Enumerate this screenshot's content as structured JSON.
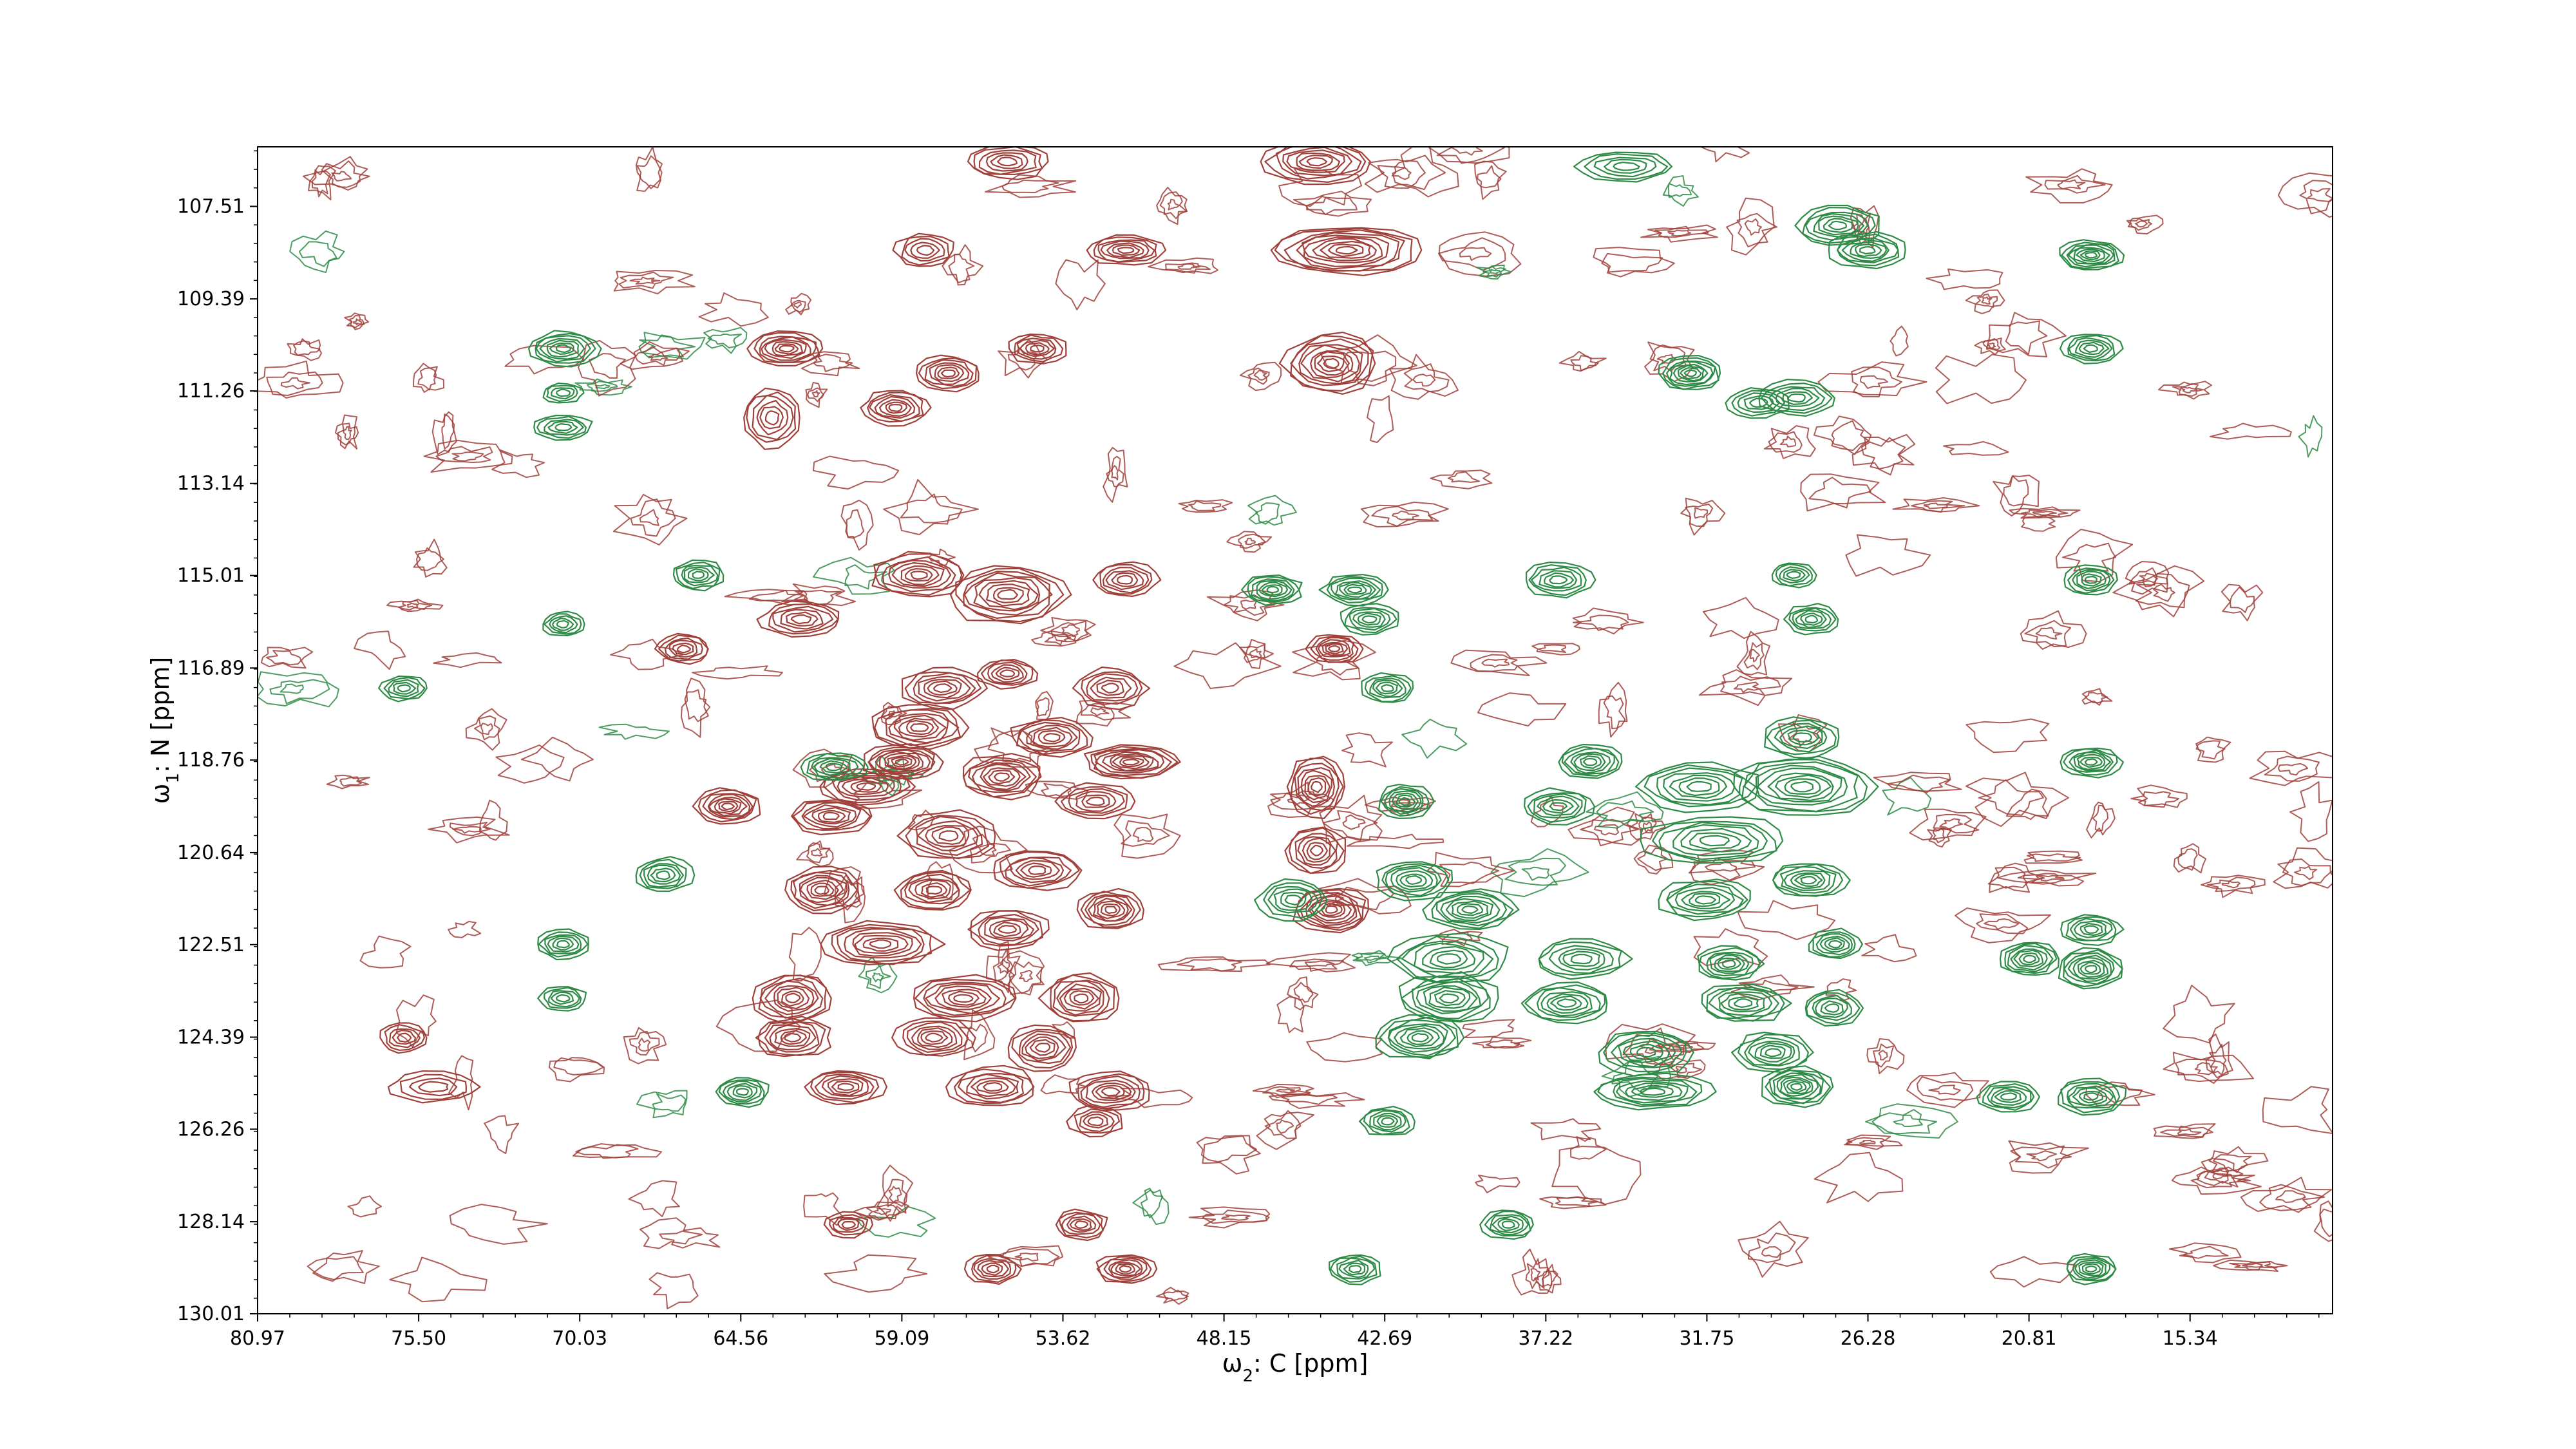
{
  "chart_data": {
    "type": "contour",
    "title": "",
    "colors": {
      "positive": "#a0403a",
      "negative": "#2e8b46"
    },
    "x_axis": {
      "label_prefix": "ω",
      "label_sub": "2",
      "label_rest": ": C [ppm]",
      "range": [
        80.97,
        10.5
      ],
      "reversed": true,
      "ticks": [
        80.97,
        75.5,
        70.03,
        64.56,
        59.09,
        53.62,
        48.15,
        42.69,
        37.22,
        31.75,
        26.28,
        20.81,
        15.34
      ],
      "tick_labels": [
        "80.97",
        "75.50",
        "70.03",
        "64.56",
        "59.09",
        "53.62",
        "48.15",
        "42.69",
        "37.22",
        "31.75",
        "26.28",
        "20.81",
        "15.34"
      ]
    },
    "y_axis": {
      "label_prefix": "ω",
      "label_sub": "1",
      "label_rest": ": N [ppm]",
      "range": [
        106.3,
        130.01
      ],
      "reversed": true,
      "ticks": [
        107.51,
        109.39,
        111.26,
        113.14,
        115.01,
        116.89,
        118.76,
        120.64,
        122.51,
        124.39,
        126.26,
        128.14,
        130.01
      ],
      "tick_labels": [
        "107.51",
        "109.39",
        "111.26",
        "113.14",
        "115.01",
        "116.89",
        "118.76",
        "120.64",
        "122.51",
        "124.39",
        "126.26",
        "128.14",
        "130.01"
      ]
    },
    "peaks": [
      {
        "x": 55.5,
        "y": 106.6,
        "rx": 1.4,
        "ry": 0.35,
        "levels": 6,
        "sign": "positive"
      },
      {
        "x": 45.0,
        "y": 106.6,
        "rx": 1.8,
        "ry": 0.45,
        "levels": 8,
        "sign": "positive"
      },
      {
        "x": 34.5,
        "y": 106.7,
        "rx": 1.6,
        "ry": 0.3,
        "levels": 5,
        "sign": "negative"
      },
      {
        "x": 58.3,
        "y": 108.4,
        "rx": 1.0,
        "ry": 0.35,
        "levels": 5,
        "sign": "positive"
      },
      {
        "x": 51.5,
        "y": 108.4,
        "rx": 1.3,
        "ry": 0.3,
        "levels": 7,
        "sign": "positive"
      },
      {
        "x": 44.0,
        "y": 108.4,
        "rx": 2.5,
        "ry": 0.5,
        "levels": 10,
        "sign": "positive"
      },
      {
        "x": 27.3,
        "y": 107.9,
        "rx": 1.4,
        "ry": 0.4,
        "levels": 7,
        "sign": "negative"
      },
      {
        "x": 26.3,
        "y": 108.4,
        "rx": 1.3,
        "ry": 0.35,
        "levels": 7,
        "sign": "negative"
      },
      {
        "x": 18.7,
        "y": 108.5,
        "rx": 1.1,
        "ry": 0.3,
        "levels": 8,
        "sign": "negative"
      },
      {
        "x": 70.6,
        "y": 110.4,
        "rx": 1.2,
        "ry": 0.35,
        "levels": 7,
        "sign": "negative"
      },
      {
        "x": 63.0,
        "y": 110.4,
        "rx": 1.3,
        "ry": 0.35,
        "levels": 8,
        "sign": "positive"
      },
      {
        "x": 57.5,
        "y": 110.9,
        "rx": 1.1,
        "ry": 0.35,
        "levels": 7,
        "sign": "positive"
      },
      {
        "x": 54.5,
        "y": 110.4,
        "rx": 1.0,
        "ry": 0.3,
        "levels": 6,
        "sign": "positive"
      },
      {
        "x": 44.5,
        "y": 110.7,
        "rx": 1.6,
        "ry": 0.6,
        "levels": 9,
        "sign": "positive"
      },
      {
        "x": 32.3,
        "y": 110.9,
        "rx": 1.1,
        "ry": 0.35,
        "levels": 8,
        "sign": "negative"
      },
      {
        "x": 18.7,
        "y": 110.4,
        "rx": 1.0,
        "ry": 0.3,
        "levels": 6,
        "sign": "negative"
      },
      {
        "x": 59.3,
        "y": 111.6,
        "rx": 1.1,
        "ry": 0.35,
        "levels": 7,
        "sign": "positive"
      },
      {
        "x": 63.5,
        "y": 111.8,
        "rx": 1.0,
        "ry": 0.6,
        "levels": 6,
        "sign": "positive"
      },
      {
        "x": 28.7,
        "y": 111.4,
        "rx": 1.3,
        "ry": 0.35,
        "levels": 6,
        "sign": "negative"
      },
      {
        "x": 30.0,
        "y": 111.5,
        "rx": 1.1,
        "ry": 0.3,
        "levels": 5,
        "sign": "negative"
      },
      {
        "x": 70.6,
        "y": 112.0,
        "rx": 1.0,
        "ry": 0.25,
        "levels": 5,
        "sign": "negative"
      },
      {
        "x": 70.6,
        "y": 111.3,
        "rx": 0.7,
        "ry": 0.2,
        "levels": 4,
        "sign": "negative"
      },
      {
        "x": 66.0,
        "y": 115.0,
        "rx": 0.9,
        "ry": 0.3,
        "levels": 6,
        "sign": "negative"
      },
      {
        "x": 58.5,
        "y": 115.0,
        "rx": 1.6,
        "ry": 0.45,
        "levels": 8,
        "sign": "positive"
      },
      {
        "x": 55.5,
        "y": 115.4,
        "rx": 2.0,
        "ry": 0.6,
        "levels": 9,
        "sign": "positive"
      },
      {
        "x": 51.5,
        "y": 115.1,
        "rx": 1.1,
        "ry": 0.35,
        "levels": 6,
        "sign": "positive"
      },
      {
        "x": 70.6,
        "y": 116.0,
        "rx": 0.7,
        "ry": 0.25,
        "levels": 5,
        "sign": "negative"
      },
      {
        "x": 62.5,
        "y": 115.9,
        "rx": 1.4,
        "ry": 0.35,
        "levels": 6,
        "sign": "positive"
      },
      {
        "x": 66.5,
        "y": 116.5,
        "rx": 0.9,
        "ry": 0.3,
        "levels": 6,
        "sign": "positive"
      },
      {
        "x": 46.5,
        "y": 115.3,
        "rx": 1.0,
        "ry": 0.3,
        "levels": 7,
        "sign": "negative"
      },
      {
        "x": 43.7,
        "y": 115.3,
        "rx": 1.1,
        "ry": 0.3,
        "levels": 7,
        "sign": "negative"
      },
      {
        "x": 43.2,
        "y": 115.9,
        "rx": 1.0,
        "ry": 0.3,
        "levels": 6,
        "sign": "negative"
      },
      {
        "x": 44.4,
        "y": 116.5,
        "rx": 0.9,
        "ry": 0.3,
        "levels": 7,
        "sign": "positive"
      },
      {
        "x": 42.6,
        "y": 117.3,
        "rx": 0.9,
        "ry": 0.3,
        "levels": 6,
        "sign": "negative"
      },
      {
        "x": 36.8,
        "y": 115.1,
        "rx": 1.2,
        "ry": 0.35,
        "levels": 6,
        "sign": "negative"
      },
      {
        "x": 28.2,
        "y": 115.9,
        "rx": 0.9,
        "ry": 0.3,
        "levels": 6,
        "sign": "negative"
      },
      {
        "x": 28.8,
        "y": 115.0,
        "rx": 0.8,
        "ry": 0.25,
        "levels": 5,
        "sign": "negative"
      },
      {
        "x": 18.7,
        "y": 115.1,
        "rx": 0.9,
        "ry": 0.3,
        "levels": 6,
        "sign": "negative"
      },
      {
        "x": 76.0,
        "y": 117.3,
        "rx": 0.8,
        "ry": 0.25,
        "levels": 5,
        "sign": "negative"
      },
      {
        "x": 57.7,
        "y": 117.3,
        "rx": 1.4,
        "ry": 0.4,
        "levels": 7,
        "sign": "positive"
      },
      {
        "x": 55.5,
        "y": 117.0,
        "rx": 1.0,
        "ry": 0.3,
        "levels": 6,
        "sign": "positive"
      },
      {
        "x": 52.0,
        "y": 117.3,
        "rx": 1.2,
        "ry": 0.4,
        "levels": 6,
        "sign": "positive"
      },
      {
        "x": 58.5,
        "y": 118.1,
        "rx": 1.6,
        "ry": 0.45,
        "levels": 8,
        "sign": "positive"
      },
      {
        "x": 54.0,
        "y": 118.3,
        "rx": 1.4,
        "ry": 0.4,
        "levels": 7,
        "sign": "positive"
      },
      {
        "x": 59.1,
        "y": 118.8,
        "rx": 1.3,
        "ry": 0.35,
        "levels": 9,
        "sign": "positive"
      },
      {
        "x": 51.3,
        "y": 118.8,
        "rx": 1.6,
        "ry": 0.35,
        "levels": 9,
        "sign": "positive"
      },
      {
        "x": 55.7,
        "y": 119.1,
        "rx": 1.4,
        "ry": 0.45,
        "levels": 8,
        "sign": "positive"
      },
      {
        "x": 60.3,
        "y": 119.3,
        "rx": 1.6,
        "ry": 0.35,
        "levels": 7,
        "sign": "positive"
      },
      {
        "x": 65.0,
        "y": 119.7,
        "rx": 1.1,
        "ry": 0.35,
        "levels": 8,
        "sign": "positive"
      },
      {
        "x": 61.5,
        "y": 119.9,
        "rx": 1.4,
        "ry": 0.35,
        "levels": 7,
        "sign": "positive"
      },
      {
        "x": 52.5,
        "y": 119.6,
        "rx": 1.3,
        "ry": 0.35,
        "levels": 6,
        "sign": "positive"
      },
      {
        "x": 57.5,
        "y": 120.3,
        "rx": 1.6,
        "ry": 0.5,
        "levels": 7,
        "sign": "positive"
      },
      {
        "x": 45.0,
        "y": 119.3,
        "rx": 1.0,
        "ry": 0.6,
        "levels": 8,
        "sign": "positive"
      },
      {
        "x": 45.0,
        "y": 120.6,
        "rx": 1.0,
        "ry": 0.5,
        "levels": 7,
        "sign": "positive"
      },
      {
        "x": 61.4,
        "y": 118.9,
        "rx": 1.1,
        "ry": 0.3,
        "levels": 6,
        "sign": "negative"
      },
      {
        "x": 42.0,
        "y": 119.6,
        "rx": 0.9,
        "ry": 0.35,
        "levels": 7,
        "sign": "negative"
      },
      {
        "x": 35.7,
        "y": 118.8,
        "rx": 1.1,
        "ry": 0.35,
        "levels": 7,
        "sign": "negative"
      },
      {
        "x": 36.8,
        "y": 119.7,
        "rx": 1.2,
        "ry": 0.35,
        "levels": 6,
        "sign": "negative"
      },
      {
        "x": 32.0,
        "y": 119.3,
        "rx": 2.0,
        "ry": 0.5,
        "levels": 7,
        "sign": "negative"
      },
      {
        "x": 28.5,
        "y": 119.3,
        "rx": 2.4,
        "ry": 0.6,
        "levels": 9,
        "sign": "negative"
      },
      {
        "x": 28.5,
        "y": 118.3,
        "rx": 1.3,
        "ry": 0.4,
        "levels": 6,
        "sign": "negative"
      },
      {
        "x": 31.5,
        "y": 120.4,
        "rx": 2.5,
        "ry": 0.5,
        "levels": 7,
        "sign": "negative"
      },
      {
        "x": 18.7,
        "y": 118.8,
        "rx": 1.0,
        "ry": 0.3,
        "levels": 7,
        "sign": "negative"
      },
      {
        "x": 67.2,
        "y": 121.1,
        "rx": 1.0,
        "ry": 0.35,
        "levels": 6,
        "sign": "negative"
      },
      {
        "x": 61.8,
        "y": 121.4,
        "rx": 1.3,
        "ry": 0.45,
        "levels": 8,
        "sign": "positive"
      },
      {
        "x": 58.0,
        "y": 121.4,
        "rx": 1.3,
        "ry": 0.4,
        "levels": 7,
        "sign": "positive"
      },
      {
        "x": 54.5,
        "y": 121.0,
        "rx": 1.5,
        "ry": 0.4,
        "levels": 7,
        "sign": "positive"
      },
      {
        "x": 52.0,
        "y": 121.8,
        "rx": 1.1,
        "ry": 0.4,
        "levels": 8,
        "sign": "positive"
      },
      {
        "x": 44.5,
        "y": 121.8,
        "rx": 1.3,
        "ry": 0.45,
        "levels": 9,
        "sign": "positive"
      },
      {
        "x": 41.7,
        "y": 121.2,
        "rx": 1.3,
        "ry": 0.4,
        "levels": 7,
        "sign": "negative"
      },
      {
        "x": 39.8,
        "y": 121.8,
        "rx": 1.5,
        "ry": 0.4,
        "levels": 8,
        "sign": "negative"
      },
      {
        "x": 45.8,
        "y": 121.6,
        "rx": 1.2,
        "ry": 0.4,
        "levels": 6,
        "sign": "negative"
      },
      {
        "x": 31.8,
        "y": 121.6,
        "rx": 1.6,
        "ry": 0.4,
        "levels": 7,
        "sign": "negative"
      },
      {
        "x": 28.3,
        "y": 121.2,
        "rx": 1.3,
        "ry": 0.35,
        "levels": 7,
        "sign": "negative"
      },
      {
        "x": 70.6,
        "y": 122.5,
        "rx": 0.9,
        "ry": 0.3,
        "levels": 6,
        "sign": "negative"
      },
      {
        "x": 59.8,
        "y": 122.5,
        "rx": 2.0,
        "ry": 0.45,
        "levels": 8,
        "sign": "positive"
      },
      {
        "x": 55.5,
        "y": 122.2,
        "rx": 1.4,
        "ry": 0.4,
        "levels": 7,
        "sign": "positive"
      },
      {
        "x": 40.5,
        "y": 122.8,
        "rx": 2.0,
        "ry": 0.5,
        "levels": 7,
        "sign": "negative"
      },
      {
        "x": 36.0,
        "y": 122.8,
        "rx": 1.6,
        "ry": 0.4,
        "levels": 6,
        "sign": "negative"
      },
      {
        "x": 31.0,
        "y": 122.9,
        "rx": 1.1,
        "ry": 0.35,
        "levels": 7,
        "sign": "negative"
      },
      {
        "x": 27.4,
        "y": 122.5,
        "rx": 0.9,
        "ry": 0.3,
        "levels": 6,
        "sign": "negative"
      },
      {
        "x": 18.7,
        "y": 122.2,
        "rx": 1.0,
        "ry": 0.3,
        "levels": 6,
        "sign": "negative"
      },
      {
        "x": 20.8,
        "y": 122.8,
        "rx": 1.0,
        "ry": 0.35,
        "levels": 7,
        "sign": "negative"
      },
      {
        "x": 18.7,
        "y": 123.0,
        "rx": 1.1,
        "ry": 0.4,
        "levels": 8,
        "sign": "negative"
      },
      {
        "x": 70.6,
        "y": 123.6,
        "rx": 0.8,
        "ry": 0.25,
        "levels": 5,
        "sign": "negative"
      },
      {
        "x": 62.8,
        "y": 123.6,
        "rx": 1.3,
        "ry": 0.5,
        "levels": 8,
        "sign": "positive"
      },
      {
        "x": 57.0,
        "y": 123.6,
        "rx": 1.8,
        "ry": 0.45,
        "levels": 8,
        "sign": "positive"
      },
      {
        "x": 53.0,
        "y": 123.6,
        "rx": 1.3,
        "ry": 0.5,
        "levels": 8,
        "sign": "positive"
      },
      {
        "x": 40.5,
        "y": 123.6,
        "rx": 1.7,
        "ry": 0.5,
        "levels": 8,
        "sign": "negative"
      },
      {
        "x": 36.5,
        "y": 123.7,
        "rx": 1.5,
        "ry": 0.4,
        "levels": 7,
        "sign": "negative"
      },
      {
        "x": 30.5,
        "y": 123.7,
        "rx": 1.5,
        "ry": 0.4,
        "levels": 7,
        "sign": "negative"
      },
      {
        "x": 27.5,
        "y": 123.8,
        "rx": 1.0,
        "ry": 0.35,
        "levels": 6,
        "sign": "negative"
      },
      {
        "x": 62.8,
        "y": 124.4,
        "rx": 1.3,
        "ry": 0.4,
        "levels": 7,
        "sign": "positive"
      },
      {
        "x": 58.0,
        "y": 124.4,
        "rx": 1.3,
        "ry": 0.4,
        "levels": 7,
        "sign": "positive"
      },
      {
        "x": 54.3,
        "y": 124.6,
        "rx": 1.2,
        "ry": 0.45,
        "levels": 7,
        "sign": "positive"
      },
      {
        "x": 41.5,
        "y": 124.4,
        "rx": 1.5,
        "ry": 0.45,
        "levels": 8,
        "sign": "negative"
      },
      {
        "x": 33.8,
        "y": 124.7,
        "rx": 1.6,
        "ry": 0.45,
        "levels": 7,
        "sign": "negative"
      },
      {
        "x": 29.5,
        "y": 124.7,
        "rx": 1.3,
        "ry": 0.4,
        "levels": 7,
        "sign": "negative"
      },
      {
        "x": 76.0,
        "y": 124.4,
        "rx": 0.8,
        "ry": 0.3,
        "levels": 5,
        "sign": "positive"
      },
      {
        "x": 61.0,
        "y": 125.4,
        "rx": 1.3,
        "ry": 0.35,
        "levels": 7,
        "sign": "positive"
      },
      {
        "x": 56.0,
        "y": 125.4,
        "rx": 1.5,
        "ry": 0.4,
        "levels": 7,
        "sign": "positive"
      },
      {
        "x": 52.0,
        "y": 125.5,
        "rx": 1.4,
        "ry": 0.4,
        "levels": 7,
        "sign": "positive"
      },
      {
        "x": 64.5,
        "y": 125.5,
        "rx": 0.9,
        "ry": 0.3,
        "levels": 6,
        "sign": "negative"
      },
      {
        "x": 33.6,
        "y": 125.5,
        "rx": 2.0,
        "ry": 0.35,
        "levels": 7,
        "sign": "negative"
      },
      {
        "x": 28.7,
        "y": 125.4,
        "rx": 1.2,
        "ry": 0.4,
        "levels": 9,
        "sign": "negative"
      },
      {
        "x": 21.5,
        "y": 125.6,
        "rx": 1.1,
        "ry": 0.3,
        "levels": 6,
        "sign": "negative"
      },
      {
        "x": 18.7,
        "y": 125.6,
        "rx": 1.2,
        "ry": 0.35,
        "levels": 7,
        "sign": "negative"
      },
      {
        "x": 75.0,
        "y": 125.4,
        "rx": 1.5,
        "ry": 0.3,
        "levels": 4,
        "sign": "positive"
      },
      {
        "x": 52.5,
        "y": 126.1,
        "rx": 0.9,
        "ry": 0.3,
        "levels": 5,
        "sign": "positive"
      },
      {
        "x": 42.6,
        "y": 126.1,
        "rx": 0.9,
        "ry": 0.3,
        "levels": 6,
        "sign": "negative"
      },
      {
        "x": 38.5,
        "y": 128.2,
        "rx": 0.9,
        "ry": 0.3,
        "levels": 6,
        "sign": "negative"
      },
      {
        "x": 53.0,
        "y": 128.2,
        "rx": 0.9,
        "ry": 0.3,
        "levels": 6,
        "sign": "positive"
      },
      {
        "x": 56.0,
        "y": 129.1,
        "rx": 0.9,
        "ry": 0.3,
        "levels": 6,
        "sign": "positive"
      },
      {
        "x": 51.5,
        "y": 129.1,
        "rx": 1.0,
        "ry": 0.3,
        "levels": 7,
        "sign": "positive"
      },
      {
        "x": 43.7,
        "y": 129.1,
        "rx": 0.9,
        "ry": 0.3,
        "levels": 6,
        "sign": "negative"
      },
      {
        "x": 18.7,
        "y": 129.1,
        "rx": 0.9,
        "ry": 0.3,
        "levels": 7,
        "sign": "negative"
      },
      {
        "x": 60.9,
        "y": 128.2,
        "rx": 0.8,
        "ry": 0.25,
        "levels": 5,
        "sign": "positive"
      }
    ],
    "noise": {
      "count": 260,
      "seed": 7
    },
    "grid": false,
    "legend": "none"
  }
}
